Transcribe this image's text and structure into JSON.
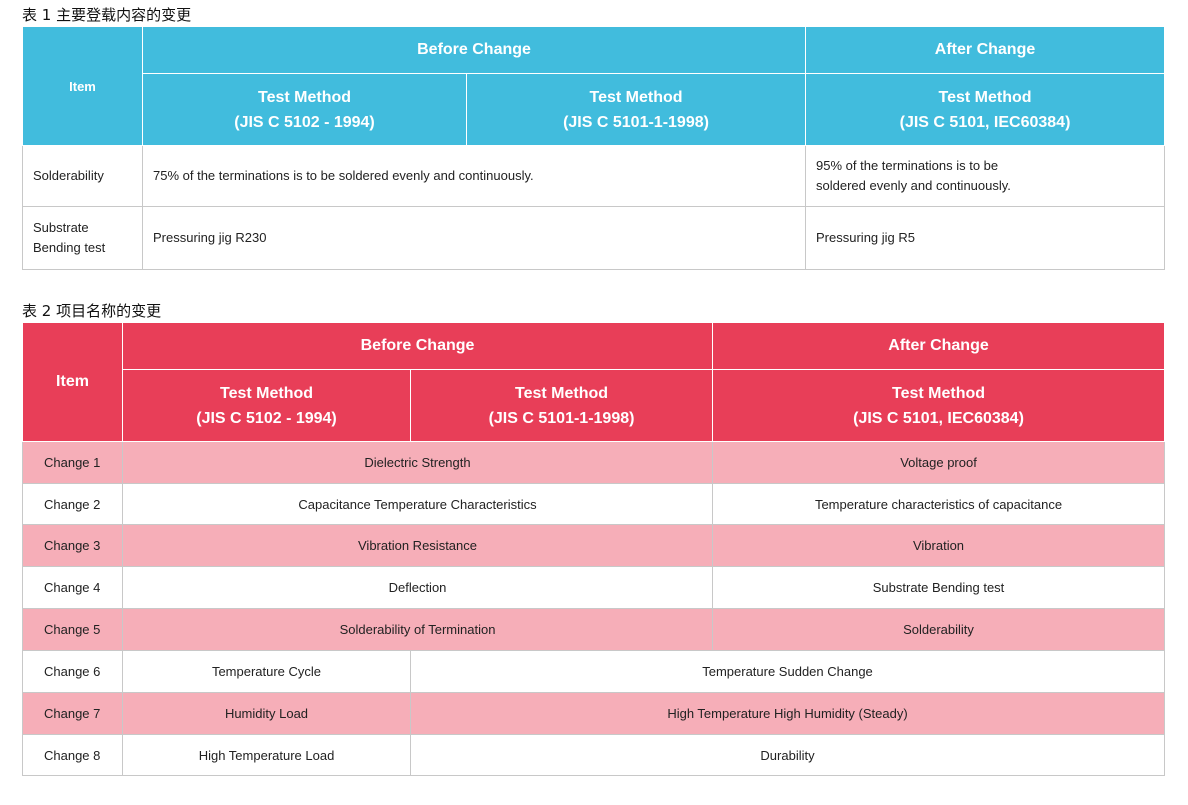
{
  "table1": {
    "caption": "表 1 主要登载内容的变更",
    "header": {
      "item": "Item",
      "before": "Before Change",
      "after": "After Change",
      "m1_line1": "Test Method",
      "m1_line2": "(JIS C 5102 - 1994)",
      "m2_line1": "Test Method",
      "m2_line2": "(JIS C 5101-1-1998)",
      "m3_line1": "Test Method",
      "m3_line2": "(JIS C 5101, IEC60384)"
    },
    "rows": [
      {
        "item": "Solderability",
        "before": "75% of the terminations is to be soldered evenly and continuously.",
        "after_line1": "95% of the terminations is to be",
        "after_line2": "soldered evenly and continuously."
      },
      {
        "item_line1": "Substrate",
        "item_line2": "Bending test",
        "before": "Pressuring jig R230",
        "after": "Pressuring jig R5"
      }
    ]
  },
  "table2": {
    "caption": "表 2 项目名称的变更",
    "header": {
      "item": "Item",
      "before": "Before Change",
      "after": "After Change",
      "m1_line1": "Test Method",
      "m1_line2": "(JIS C 5102 - 1994)",
      "m2_line1": "Test Method",
      "m2_line2": "(JIS C 5101-1-1998)",
      "m3_line1": "Test Method",
      "m3_line2": "(JIS C 5101, IEC60384)"
    },
    "rows": [
      {
        "label": "Change 1",
        "before": "Dielectric Strength",
        "after": "Voltage proof"
      },
      {
        "label": "Change 2",
        "before": "Capacitance Temperature Characteristics",
        "after": "Temperature characteristics of capacitance"
      },
      {
        "label": "Change 3",
        "before": "Vibration Resistance",
        "after": "Vibration"
      },
      {
        "label": "Change 4",
        "before": "Deflection",
        "after": "Substrate Bending test"
      },
      {
        "label": "Change 5",
        "before": "Solderability of Termination",
        "after": "Solderability"
      },
      {
        "label": "Change 6",
        "old": "Temperature Cycle",
        "new": "Temperature Sudden Change"
      },
      {
        "label": "Change 7",
        "old": "Humidity Load",
        "new": "High Temperature High Humidity (Steady)"
      },
      {
        "label": "Change 8",
        "old": "High Temperature Load",
        "new": "Durability"
      }
    ]
  },
  "colors": {
    "table1_header": "#41bcdd",
    "table2_header": "#e83e58",
    "table2_stripe": "#f6aeb8"
  }
}
